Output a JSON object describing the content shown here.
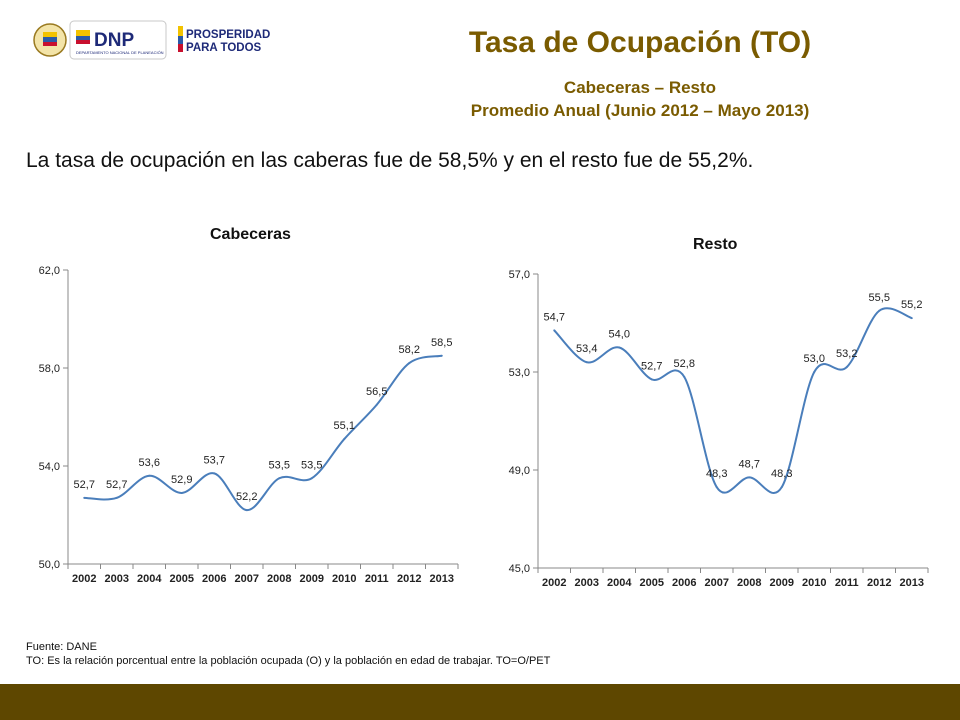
{
  "header": {
    "logo_dnp_text": "DNP",
    "logo_dnp_subtext": "DEPARTAMENTO NACIONAL DE PLANEACIÓN",
    "logo_prosperidad_line1": "PROSPERIDAD",
    "logo_prosperidad_line2": "PARA TODOS",
    "title": "Tasa de Ocupación (TO)",
    "subtitle": "Cabeceras – Resto",
    "subtitle2": "Promedio Anual (Junio 2012 – Mayo 2013)"
  },
  "lead_text": "La tasa de ocupación en las caberas fue de 58,5% y en el resto fue de 55,2%.",
  "chart_data": [
    {
      "type": "line",
      "title": "Cabeceras",
      "x": [
        "2002",
        "2003",
        "2004",
        "2005",
        "2006",
        "2007",
        "2008",
        "2009",
        "2010",
        "2011",
        "2012",
        "2013"
      ],
      "values": [
        52.7,
        52.7,
        53.6,
        52.9,
        53.7,
        52.2,
        53.5,
        53.5,
        55.1,
        56.5,
        58.2,
        58.5
      ],
      "data_labels": [
        "52,7",
        "52,7",
        "53,6",
        "52,9",
        "53,7",
        "52,2",
        "53,5",
        "53,5",
        "55,1",
        "56,5",
        "58,2",
        "58,5"
      ],
      "yticks": [
        50.0,
        54.0,
        58.0,
        62.0
      ],
      "ytick_labels": [
        "50,0",
        "54,0",
        "58,0",
        "62,0"
      ],
      "ylim": [
        50,
        62
      ],
      "grid": false,
      "color": "#4a7ebb"
    },
    {
      "type": "line",
      "title": "Resto",
      "x": [
        "2002",
        "2003",
        "2004",
        "2005",
        "2006",
        "2007",
        "2008",
        "2009",
        "2010",
        "2011",
        "2012",
        "2013"
      ],
      "values": [
        54.7,
        53.4,
        54.0,
        52.7,
        52.8,
        48.3,
        48.7,
        48.3,
        53.0,
        53.2,
        55.5,
        55.2
      ],
      "data_labels": [
        "54,7",
        "53,4",
        "54,0",
        "52,7",
        "52,8",
        "48,3",
        "48,7",
        "48,3",
        "53,0",
        "53,2",
        "55,5",
        "55,2"
      ],
      "yticks": [
        45.0,
        49.0,
        53.0,
        57.0
      ],
      "ytick_labels": [
        "45,0",
        "49,0",
        "53,0",
        "57,0"
      ],
      "ylim": [
        45,
        57
      ],
      "grid": false,
      "color": "#4a7ebb"
    }
  ],
  "footer": {
    "source": "Fuente: DANE",
    "note": "TO: Es la relación porcentual entre la población ocupada (O) y la población  en edad de trabajar. TO=O/PET"
  }
}
